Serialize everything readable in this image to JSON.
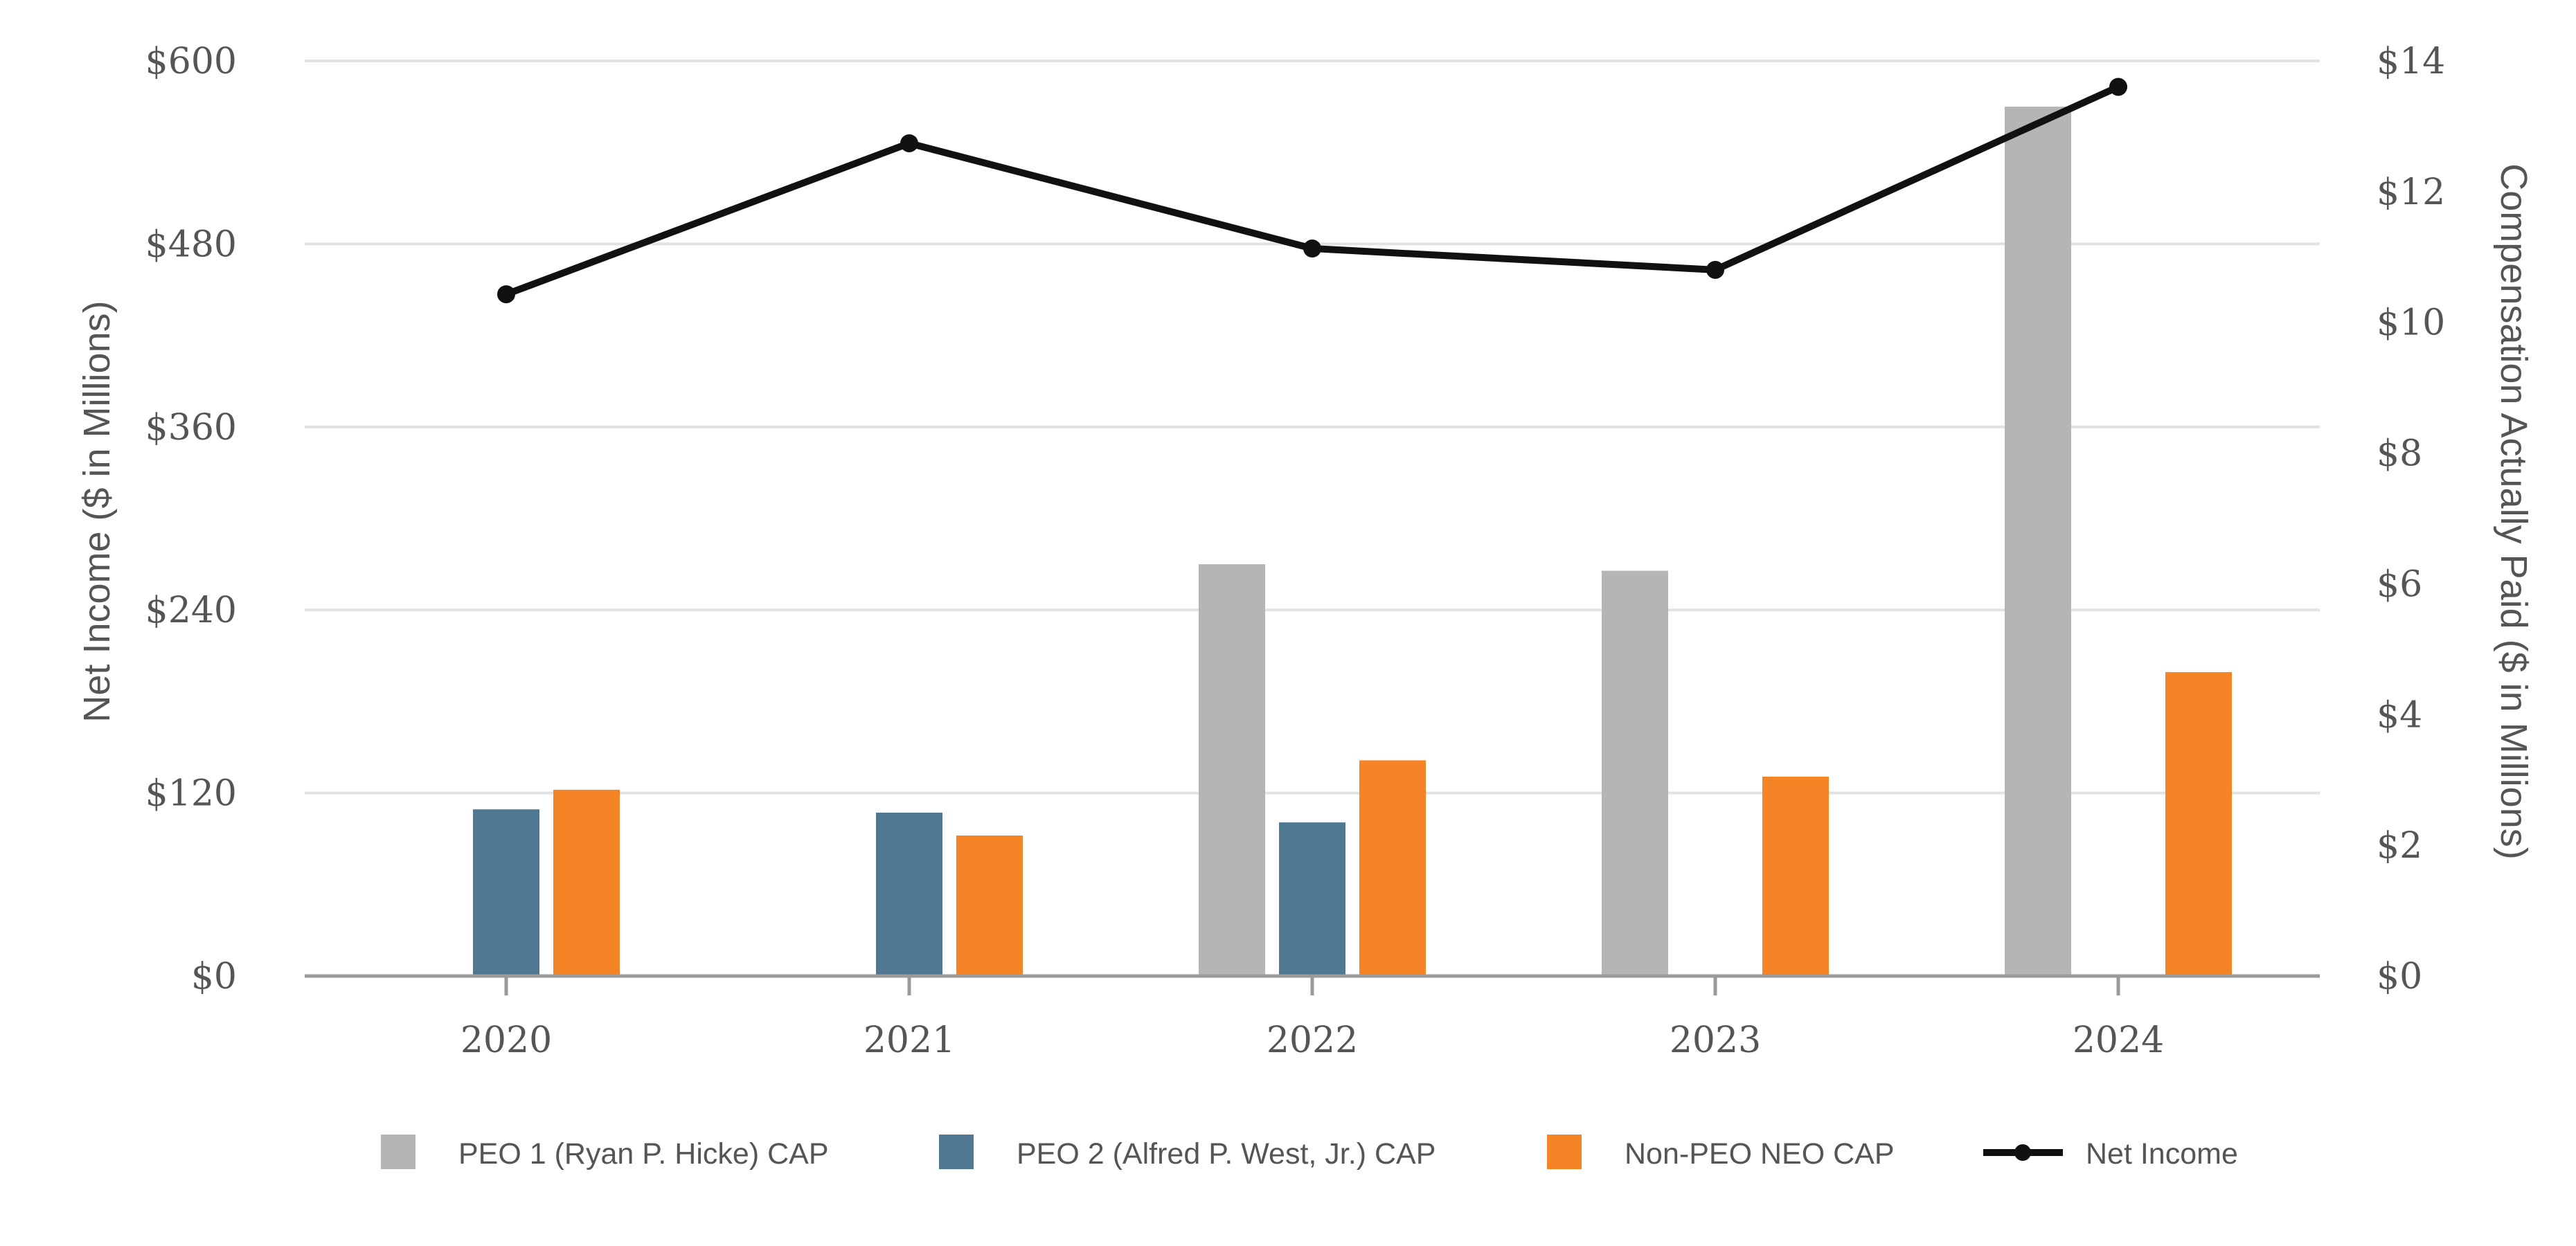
{
  "chart_data": {
    "type": "bar",
    "categories": [
      "2020",
      "2021",
      "2022",
      "2023",
      "2024"
    ],
    "left_axis": {
      "label": "Net Income ($ in Millions)",
      "range": [
        0,
        600
      ],
      "ticks": [
        0,
        120,
        240,
        360,
        480,
        600
      ],
      "tick_labels": [
        "$0",
        "$120",
        "$240",
        "$360",
        "$480",
        "$600"
      ]
    },
    "right_axis": {
      "label": "Compensation Actually Paid ($ in Millions)",
      "range": [
        0,
        14
      ],
      "ticks": [
        0,
        2,
        4,
        6,
        8,
        10,
        12,
        14
      ],
      "tick_labels": [
        "$0",
        "$2",
        "$4",
        "$6",
        "$8",
        "$10",
        "$12",
        "$14"
      ]
    },
    "series": [
      {
        "name": "PEO 1  (Ryan P. Hicke) CAP",
        "kind": "bar",
        "axis": "right",
        "color": "#b5b5b5",
        "values": [
          null,
          null,
          6.3,
          6.2,
          13.3
        ]
      },
      {
        "name": "PEO 2 (Alfred P. West, Jr.) CAP",
        "kind": "bar",
        "axis": "right",
        "color": "#517893",
        "values": [
          2.55,
          2.5,
          2.35,
          null,
          null
        ]
      },
      {
        "name": "Non-PEO NEO CAP",
        "kind": "bar",
        "axis": "right",
        "color": "#f58426",
        "values": [
          2.85,
          2.15,
          3.3,
          3.05,
          4.65
        ]
      },
      {
        "name": "Net Income",
        "kind": "line",
        "axis": "left",
        "color": "#111111",
        "values": [
          447,
          546,
          477,
          463,
          583
        ]
      }
    ],
    "legend_position": "bottom",
    "grid": true
  }
}
